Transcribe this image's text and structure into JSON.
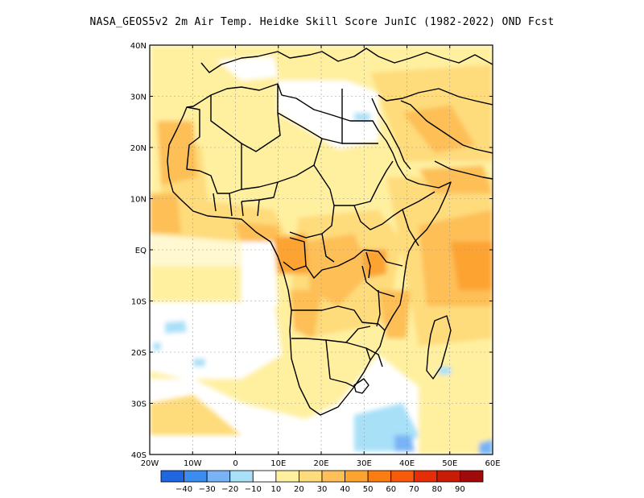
{
  "title": "NASA_GEOS5v2  2m Air Temp. Heidke Skill Score JunIC (1982-2022) OND Fcst",
  "lat_ticks": [
    "40N",
    "30N",
    "20N",
    "10N",
    "EQ",
    "10S",
    "20S",
    "30S",
    "40S"
  ],
  "lon_ticks": [
    "20W",
    "10W",
    "0",
    "10E",
    "20E",
    "30E",
    "40E",
    "50E",
    "60E"
  ],
  "colorbar": {
    "colors": [
      "#1f66e0",
      "#3c8cf0",
      "#78b4f5",
      "#a8e0f8",
      "#ffffff",
      "#fff0a0",
      "#fedc7c",
      "#fdbf57",
      "#fca330",
      "#fa7d12",
      "#f65a0a",
      "#e62e06",
      "#c81c06",
      "#a00a0a"
    ],
    "labels": [
      "-40",
      "-30",
      "-20",
      "-10",
      "10",
      "20",
      "30",
      "40",
      "50",
      "60",
      "70",
      "80",
      "90"
    ]
  }
}
